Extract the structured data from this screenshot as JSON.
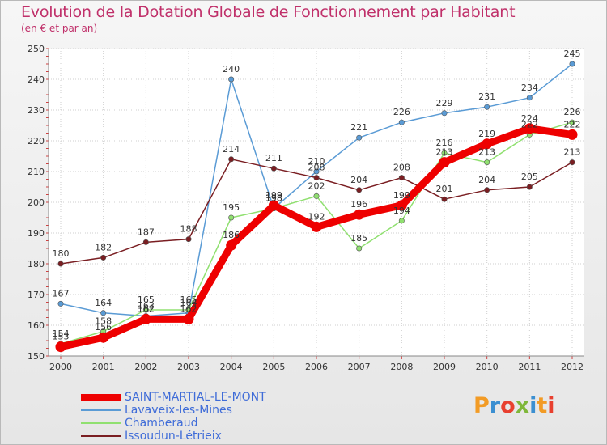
{
  "title": "Evolution de la Dotation Globale de Fonctionnement par Habitant",
  "subtitle": "(en € et par an)",
  "logo": {
    "text": "Proxiti",
    "colors": [
      "#f29b25",
      "#3b8fd1",
      "#e8402f",
      "#7fb73a",
      "#3b8fd1",
      "#f29b25",
      "#e8402f"
    ]
  },
  "chart_data": {
    "type": "line",
    "title": "Evolution de la Dotation Globale de Fonctionnement par Habitant",
    "subtitle": "(en € et par an)",
    "xlabel": "",
    "ylabel": "",
    "categories": [
      "2000",
      "2001",
      "2002",
      "2003",
      "2004",
      "2005",
      "2006",
      "2007",
      "2008",
      "2009",
      "2010",
      "2011",
      "2012"
    ],
    "ylim": [
      150,
      250
    ],
    "yticks": [
      150,
      160,
      170,
      180,
      190,
      200,
      210,
      220,
      230,
      240,
      250
    ],
    "grid": true,
    "legend_position": "bottom-left",
    "series": [
      {
        "name": "SAINT-MARTIAL-LE-MONT",
        "color": "#ee0000",
        "values": [
          153,
          156,
          162,
          162,
          186,
          199,
          192,
          196,
          199,
          213,
          219,
          224,
          222
        ]
      },
      {
        "name": "Lavaveix-les-Mines",
        "color": "#5a9bd5",
        "values": [
          167,
          164,
          163,
          164,
          240,
          198,
          210,
          221,
          226,
          229,
          231,
          234,
          245
        ]
      },
      {
        "name": "Chamberaud",
        "color": "#90e070",
        "values": [
          154,
          158,
          165,
          165,
          195,
          198,
          202,
          185,
          194,
          216,
          213,
          222,
          226
        ]
      },
      {
        "name": "Issoudun-Létrieix",
        "color": "#7a1e22",
        "values": [
          180,
          182,
          187,
          188,
          214,
          211,
          208,
          204,
          208,
          201,
          204,
          205,
          213
        ]
      }
    ]
  }
}
